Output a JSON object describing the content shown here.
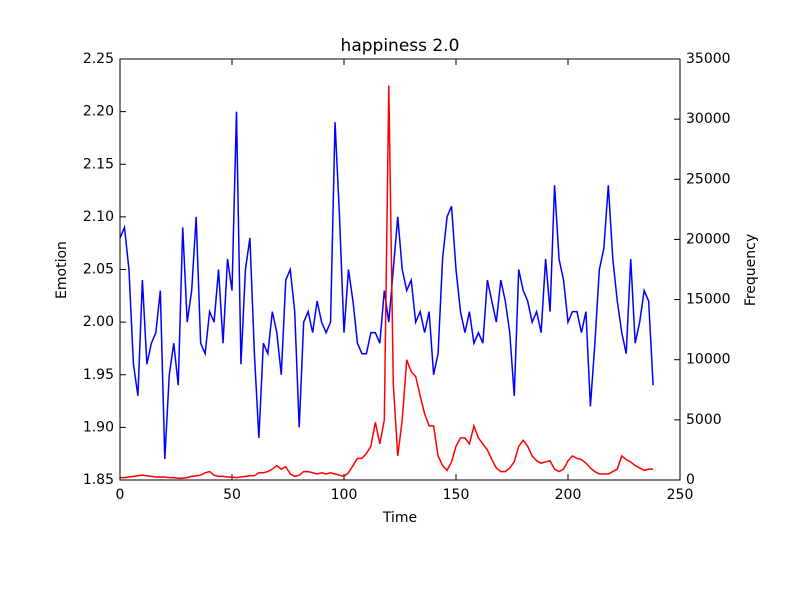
{
  "chart_data": {
    "type": "line",
    "title": "happiness 2.0",
    "xlabel": "Time",
    "ylabel": "Emotion",
    "y2label": "Frequency",
    "x": [
      0,
      2,
      4,
      6,
      8,
      10,
      12,
      14,
      16,
      18,
      20,
      22,
      24,
      26,
      28,
      30,
      32,
      34,
      36,
      38,
      40,
      42,
      44,
      46,
      48,
      50,
      52,
      54,
      56,
      58,
      60,
      62,
      64,
      66,
      68,
      70,
      72,
      74,
      76,
      78,
      80,
      82,
      84,
      86,
      88,
      90,
      92,
      94,
      96,
      98,
      100,
      102,
      104,
      106,
      108,
      110,
      112,
      114,
      116,
      118,
      120,
      122,
      124,
      126,
      128,
      130,
      132,
      134,
      136,
      138,
      140,
      142,
      144,
      146,
      148,
      150,
      152,
      154,
      156,
      158,
      160,
      162,
      164,
      166,
      168,
      170,
      172,
      174,
      176,
      178,
      180,
      182,
      184,
      186,
      188,
      190,
      192,
      194,
      196,
      198,
      200,
      202,
      204,
      206,
      208,
      210,
      212,
      214,
      216,
      218,
      220,
      222,
      224,
      226,
      228,
      230,
      232,
      234,
      236,
      238
    ],
    "series": [
      {
        "color": "#0000ff",
        "values": [
          2.08,
          2.09,
          2.05,
          1.96,
          1.93,
          2.04,
          1.96,
          1.98,
          1.99,
          2.03,
          1.87,
          1.95,
          1.98,
          1.94,
          2.09,
          2.0,
          2.03,
          2.1,
          1.98,
          1.97,
          2.01,
          2.0,
          2.05,
          1.98,
          2.06,
          2.03,
          2.2,
          1.96,
          2.05,
          2.08,
          1.97,
          1.89,
          1.98,
          1.97,
          2.01,
          1.99,
          1.95,
          2.04,
          2.05,
          2.01,
          1.9,
          2.0,
          2.01,
          1.99,
          2.02,
          2.0,
          1.99,
          2.0,
          2.19,
          2.1,
          1.99,
          2.05,
          2.02,
          1.98,
          1.97,
          1.97,
          1.99,
          1.99,
          1.98,
          2.03,
          2.0,
          2.05,
          2.1,
          2.05,
          2.03,
          2.04,
          2.0,
          2.01,
          1.99,
          2.01,
          1.95,
          1.97,
          2.06,
          2.1,
          2.11,
          2.05,
          2.01,
          1.99,
          2.01,
          1.98,
          1.99,
          1.98,
          2.04,
          2.02,
          2.0,
          2.04,
          2.02,
          1.99,
          1.93,
          2.05,
          2.03,
          2.02,
          2.0,
          2.01,
          1.99,
          2.06,
          2.01,
          2.13,
          2.06,
          2.04,
          2.0,
          2.01,
          2.01,
          1.99,
          2.01,
          1.92,
          1.98,
          2.05,
          2.07,
          2.13,
          2.06,
          2.02,
          1.99,
          1.97,
          2.06,
          1.98,
          2.0,
          2.03,
          2.02,
          1.94
        ]
      },
      {
        "color": "#ff0000",
        "axis": "y2",
        "values": [
          200,
          200,
          250,
          300,
          350,
          400,
          350,
          300,
          250,
          250,
          250,
          200,
          200,
          150,
          150,
          200,
          300,
          350,
          400,
          600,
          700,
          400,
          300,
          300,
          250,
          250,
          200,
          250,
          300,
          350,
          350,
          600,
          600,
          700,
          900,
          1200,
          900,
          1100,
          500,
          300,
          400,
          700,
          700,
          600,
          500,
          600,
          500,
          600,
          500,
          400,
          300,
          600,
          1200,
          1800,
          1800,
          2200,
          2800,
          4800,
          3000,
          5000,
          32800,
          8000,
          2000,
          5000,
          10000,
          9000,
          8600,
          7000,
          5500,
          4500,
          4500,
          2000,
          1200,
          800,
          1500,
          2800,
          3500,
          3500,
          3000,
          4500,
          3500,
          3000,
          2500,
          1700,
          1000,
          700,
          700,
          1000,
          1500,
          2800,
          3300,
          2800,
          2000,
          1600,
          1400,
          1500,
          1600,
          900,
          700,
          900,
          1600,
          2000,
          1800,
          1700,
          1400,
          1000,
          700,
          500,
          500,
          500,
          700,
          900,
          2000,
          1700,
          1500,
          1200,
          1000,
          800,
          900,
          900
        ]
      }
    ],
    "xlim": [
      0,
      250
    ],
    "xticks": [
      0,
      50,
      100,
      150,
      200,
      250
    ],
    "ylim": [
      1.85,
      2.25
    ],
    "yticks": [
      1.85,
      {
        "value": 1.9,
        "label": "1.90"
      },
      1.95,
      {
        "value": 2.0,
        "label": "2.00"
      },
      2.05,
      {
        "value": 2.1,
        "label": "2.10"
      },
      2.15,
      {
        "value": 2.2,
        "label": "2.20"
      },
      2.25
    ],
    "y2lim": [
      0,
      35000
    ],
    "y2ticks": [
      0,
      5000,
      10000,
      15000,
      20000,
      25000,
      30000,
      35000
    ]
  }
}
